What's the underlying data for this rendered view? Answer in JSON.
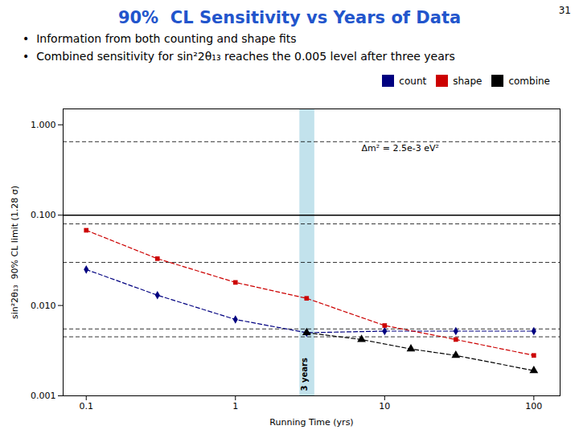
{
  "chart_data": {
    "type": "line",
    "title": "90%  CL Sensitivity vs Years of Data",
    "title_color": "#2255CC",
    "slide_number": "31",
    "bullets": [
      "•  Information from both counting and shape fits",
      "•  Combined sensitivity for sin²2θ₁₃ reaches the 0.005 level after three years"
    ],
    "x_label": "Running Time (yrs)",
    "y_label": "sin²2θ₁₃  90% CL limit (1.28 σ)",
    "log": true,
    "grid": false,
    "legend": "upper right",
    "xlim": [
      0.07,
      150
    ],
    "ylim": [
      0.001,
      1.5
    ],
    "xticks": [
      0.1,
      1,
      10,
      100
    ],
    "yticks": [
      0.001,
      {
        "value": 0.01,
        "label": "0.010"
      },
      {
        "value": 0.1,
        "label": "0.100"
      },
      {
        "value": 1,
        "label": "1.000"
      }
    ],
    "series": [
      {
        "name": "count",
        "color": "#000080",
        "marker": "diamond",
        "line_style": "dashed",
        "x": [
          0.1,
          0.3,
          1.0,
          3.0,
          10.0,
          30.0,
          100.0
        ],
        "values": [
          0.025,
          0.013,
          0.007,
          0.005,
          0.0052,
          0.0052,
          0.0052
        ]
      },
      {
        "name": "shape",
        "color": "#CC0000",
        "marker": "square",
        "line_style": "dashed",
        "x": [
          0.1,
          0.3,
          1.0,
          3.0,
          10.0,
          30.0,
          100.0
        ],
        "values": [
          0.068,
          0.033,
          0.018,
          0.012,
          0.006,
          0.0042,
          0.0028
        ]
      },
      {
        "name": "combine",
        "color": "#000000",
        "marker": "triangle",
        "line_style": "dashed",
        "x": [
          3.0,
          7.0,
          15.0,
          30.0,
          100.0
        ],
        "values": [
          0.005,
          0.0042,
          0.0033,
          0.0028,
          0.0019
        ]
      }
    ],
    "hlines": [
      {
        "value": 0.1,
        "line_style": "solid"
      },
      {
        "value": 0.65,
        "line_style": "dashed"
      },
      {
        "value": 0.08,
        "line_style": "dashed"
      },
      {
        "value": 0.03,
        "line_style": "dashed"
      },
      {
        "value": 0.0055,
        "line_style": "dashed"
      },
      {
        "value": 0.0045,
        "line_style": "dashed"
      }
    ],
    "band": {
      "lo": 2.7,
      "hi": 3.4,
      "color": "#ADD8E6",
      "label": "3 years"
    },
    "annotations": [
      {
        "text": "Δm² = 2.5e-3 eV²",
        "x": 7.0,
        "y": 0.55
      }
    ]
  }
}
